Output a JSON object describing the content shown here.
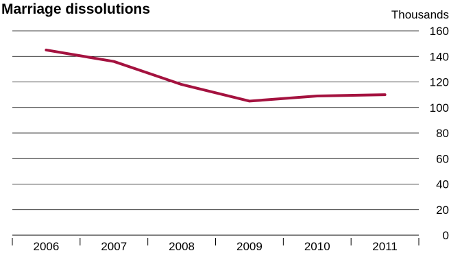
{
  "chart_data": {
    "type": "line",
    "title": "Marriage dissolutions",
    "ylabel": "Thousands",
    "xlabel": "",
    "categories": [
      "2006",
      "2007",
      "2008",
      "2009",
      "2010",
      "2011"
    ],
    "series": [
      {
        "values": [
          145,
          136,
          118,
          105,
          109,
          110
        ],
        "color": "#a4123f"
      }
    ],
    "ylim": [
      0,
      160
    ],
    "yticks": [
      0,
      20,
      40,
      60,
      80,
      100,
      120,
      140,
      160
    ],
    "grid": true,
    "legend": "none"
  }
}
